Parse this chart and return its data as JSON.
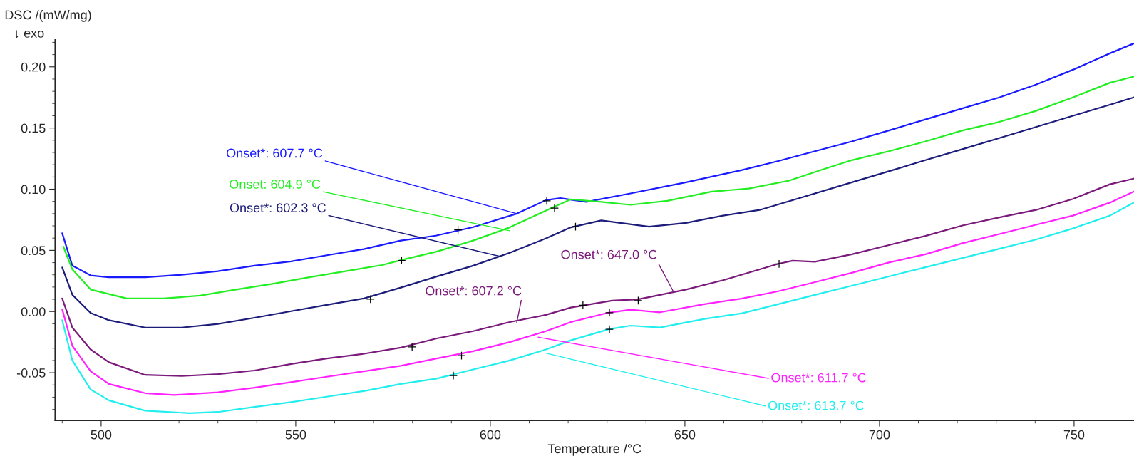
{
  "chart_data": {
    "type": "line",
    "xlabel": "Temperature /°C",
    "ylabel": "DSC /(mW/mg)",
    "xlim": [
      488.2,
      765.4
    ],
    "ylim": [
      -0.089,
      0.222
    ],
    "xticks": [
      500,
      550,
      600,
      650,
      700,
      750
    ],
    "yticks": [
      {
        "value": -0.05,
        "label": "-0.05"
      },
      {
        "value": 0.0,
        "label": "0.00"
      },
      {
        "value": 0.05,
        "label": "0.05"
      },
      {
        "value": 0.1,
        "label": "0.10"
      },
      {
        "value": 0.15,
        "label": "0.15"
      },
      {
        "value": 0.2,
        "label": "0.20"
      }
    ],
    "grid": false,
    "legend": false,
    "line_style": "solid",
    "marker": "none",
    "series": [
      {
        "color": "#1a1aff",
        "x": [
          490,
          492.6,
          497.3,
          502,
          511.3,
          520.7,
          530,
          539.4,
          548.8,
          558,
          567.5,
          577,
          586,
          595.6,
          606.8,
          614.3,
          618,
          624.7,
          636,
          650.3,
          664.5,
          674,
          683.4,
          692.9,
          702.4,
          711.8,
          721.3,
          730.8,
          740.2,
          749.7,
          759.2,
          765.3
        ],
        "values": [
          0.064,
          0.0375,
          0.0295,
          0.028,
          0.028,
          0.03,
          0.033,
          0.0375,
          0.041,
          0.046,
          0.051,
          0.058,
          0.062,
          0.069,
          0.08,
          0.091,
          0.0926,
          0.0896,
          0.0965,
          0.1056,
          0.1155,
          0.123,
          0.131,
          0.139,
          0.148,
          0.157,
          0.166,
          0.175,
          0.1855,
          0.1976,
          0.211,
          0.219
        ]
      },
      {
        "color": "#22ee22",
        "x": [
          490.3,
          492.6,
          497.3,
          506.6,
          516,
          525.4,
          534.7,
          544,
          553.5,
          562.8,
          572.2,
          577,
          586.2,
          595.6,
          605,
          616,
          620.7,
          628.5,
          636,
          645.5,
          656.9,
          666.4,
          676.8,
          685.3,
          692.9,
          702.4,
          711.8,
          721.3,
          730.8,
          740.2,
          749.7,
          759.2,
          765.3
        ],
        "values": [
          0.053,
          0.0345,
          0.018,
          0.0107,
          0.0107,
          0.013,
          0.018,
          0.0226,
          0.028,
          0.033,
          0.038,
          0.042,
          0.049,
          0.058,
          0.0688,
          0.085,
          0.0917,
          0.0896,
          0.0872,
          0.0905,
          0.098,
          0.1005,
          0.107,
          0.116,
          0.1237,
          0.131,
          0.139,
          0.148,
          0.155,
          0.164,
          0.175,
          0.187,
          0.192
        ]
      },
      {
        "color": "#1c1c7a",
        "x": [
          490,
          492.6,
          497.3,
          502,
          511.3,
          520.7,
          530,
          539.4,
          548.8,
          558,
          567.5,
          577,
          586.2,
          595.6,
          605,
          614.3,
          620.7,
          628.5,
          640.8,
          650.3,
          659.8,
          669.2,
          678.7,
          692.9,
          702.4,
          711.8,
          721.3,
          730.8,
          740.2,
          749.7,
          759.2,
          765.3
        ],
        "values": [
          0.036,
          0.0137,
          -0.0012,
          -0.0071,
          -0.0131,
          -0.0131,
          -0.0101,
          -0.0051,
          0.0003,
          0.0054,
          0.0107,
          0.0196,
          0.0286,
          0.0375,
          0.048,
          0.0598,
          0.0688,
          0.0745,
          0.0694,
          0.0724,
          0.0784,
          0.083,
          0.092,
          0.1056,
          0.1146,
          0.1237,
          0.1327,
          0.1418,
          0.1508,
          0.16,
          0.169,
          0.175
        ]
      },
      {
        "color": "#7a1a7a",
        "x": [
          490,
          492.6,
          497.3,
          502,
          511.3,
          520.7,
          530,
          539.4,
          548.8,
          558,
          567.5,
          577,
          586.2,
          595.6,
          605,
          614.3,
          620.7,
          631.3,
          638,
          650.3,
          659.8,
          674,
          677.7,
          683.4,
          692.9,
          702.4,
          711.8,
          721.3,
          730.8,
          740.2,
          749.7,
          759.2,
          765.3
        ],
        "values": [
          0.0107,
          -0.0131,
          -0.031,
          -0.0414,
          -0.0518,
          -0.0527,
          -0.0512,
          -0.0482,
          -0.0429,
          -0.0384,
          -0.0345,
          -0.0295,
          -0.022,
          -0.016,
          -0.0086,
          -0.0027,
          0.0033,
          0.009,
          0.01,
          0.018,
          0.0256,
          0.039,
          0.0416,
          0.0407,
          0.0468,
          0.0543,
          0.0618,
          0.0703,
          0.0769,
          0.083,
          0.092,
          0.104,
          0.1086
        ]
      },
      {
        "color": "#ff22ff",
        "x": [
          490,
          492.6,
          497.3,
          502,
          511.3,
          518.8,
          530,
          539.4,
          548.8,
          558,
          567.5,
          577,
          586.2,
          595.6,
          605,
          614.3,
          620.7,
          630.4,
          636,
          643.6,
          655,
          664.5,
          674,
          683.4,
          692.9,
          702.4,
          711.8,
          721.3,
          730.8,
          740.2,
          749.7,
          759.2,
          765.3
        ],
        "values": [
          0.0018,
          -0.028,
          -0.0488,
          -0.0592,
          -0.0667,
          -0.0682,
          -0.066,
          -0.0622,
          -0.0577,
          -0.0533,
          -0.0488,
          -0.0443,
          -0.0384,
          -0.0324,
          -0.025,
          -0.016,
          -0.0086,
          -0.0009,
          0.0015,
          -0.0006,
          0.006,
          0.0106,
          0.0166,
          0.024,
          0.0317,
          0.0401,
          0.0468,
          0.0558,
          0.0633,
          0.0709,
          0.0784,
          0.089,
          0.098
        ]
      },
      {
        "color": "#22eeee",
        "x": [
          490,
          492.6,
          497.3,
          502,
          511.3,
          522.6,
          530,
          539.4,
          548.8,
          558,
          567.5,
          577,
          586.2,
          595.6,
          605,
          614.3,
          620.7,
          630.4,
          636,
          643.6,
          655,
          664.5,
          674,
          683.4,
          692.9,
          702.4,
          711.8,
          721.3,
          730.8,
          740.2,
          749.7,
          759.2,
          765.3
        ],
        "values": [
          -0.0071,
          -0.04,
          -0.0637,
          -0.0726,
          -0.081,
          -0.083,
          -0.0821,
          -0.078,
          -0.074,
          -0.0696,
          -0.065,
          -0.0592,
          -0.0548,
          -0.0473,
          -0.04,
          -0.031,
          -0.0235,
          -0.0145,
          -0.0115,
          -0.013,
          -0.006,
          -0.0015,
          0.006,
          0.0136,
          0.0211,
          0.0287,
          0.0362,
          0.0437,
          0.0513,
          0.0588,
          0.0679,
          0.0784,
          0.089
        ]
      },
      {
        "type": "scatter",
        "marker": "cross",
        "color": "#000000",
        "x": [
          591.7,
          614.5,
          577.2,
          616.5,
          569.2,
          621.9,
          579.9,
          623.8,
          638,
          674.2,
          592.6,
          630.6,
          590.5,
          630.6
        ],
        "values": [
          0.0667,
          0.0905,
          0.0417,
          0.0845,
          0.0101,
          0.0694,
          -0.0289,
          0.0051,
          0.009,
          0.039,
          -0.036,
          -0.0009,
          -0.0524,
          -0.0145
        ]
      }
    ],
    "annotations": [
      "↓ exo",
      {
        "text": "Onset*: 607.7 °C",
        "x": 606.8,
        "y": 0.08
      },
      {
        "text": "Onset: 604.9 °C",
        "x": 605,
        "y": 0.066
      },
      {
        "text": "Onset*: 602.3 °C",
        "x": 602.6,
        "y": 0.045
      },
      {
        "text": "Onset*: 607.2 °C",
        "x": 606.8,
        "y": -0.009
      },
      {
        "text": "Onset*: 647.0 °C",
        "x": 647,
        "y": 0.0166
      },
      {
        "text": "Onset*: 611.7 °C",
        "x": 612.3,
        "y": -0.021
      },
      {
        "text": "Onset*: 613.7 °C",
        "x": 614.3,
        "y": -0.034
      }
    ]
  }
}
